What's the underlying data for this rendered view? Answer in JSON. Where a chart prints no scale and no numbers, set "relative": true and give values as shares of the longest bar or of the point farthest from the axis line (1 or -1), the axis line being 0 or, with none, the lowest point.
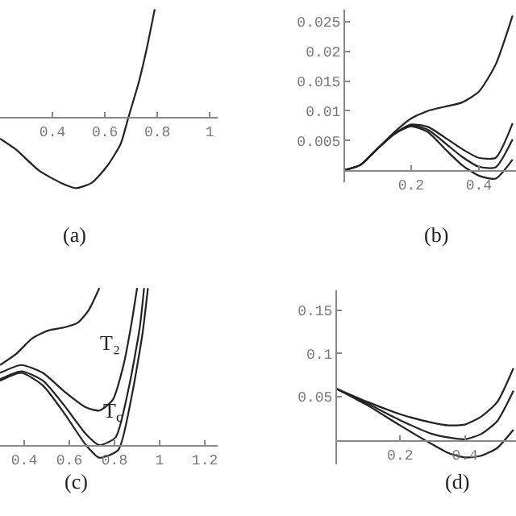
{
  "chart_data": [
    {
      "type": "line",
      "relative": true,
      "tick_labels": "x",
      "x": [
        0.2,
        0.26,
        0.35,
        0.44,
        0.49,
        0.55,
        0.61,
        0.66,
        0.69,
        0.73,
        0.76,
        0.79
      ],
      "xlim": [
        0.2,
        1.03
      ],
      "xticks": [
        0.4,
        0.6,
        0.8,
        1
      ],
      "series": [
        {
          "color": "#222222",
          "values": [
            -0.2,
            -0.3,
            -0.5,
            -0.62,
            -0.66,
            -0.61,
            -0.45,
            -0.25,
            0,
            0.33,
            0.64,
            1
          ]
        }
      ],
      "annotations": [
        "(a)"
      ]
    },
    {
      "type": "line",
      "x": [
        0,
        0.05,
        0.1,
        0.15,
        0.2,
        0.25,
        0.3,
        0.35,
        0.4,
        0.45,
        0.5
      ],
      "xlim": [
        0,
        0.51
      ],
      "xticks": [
        0.2,
        0.4
      ],
      "ylim": [
        -0.002,
        0.027
      ],
      "yticks": [
        0.005,
        0.01,
        0.015,
        0.02,
        0.025
      ],
      "series": [
        {
          "color": "#222222",
          "values": [
            0,
            0.0009,
            0.0036,
            0.0064,
            0.0087,
            0.01,
            0.0107,
            0.0114,
            0.0132,
            0.0178,
            0.026
          ]
        },
        {
          "color": "#222222",
          "values": [
            0,
            0.0009,
            0.0036,
            0.0061,
            0.0077,
            0.0073,
            0.0055,
            0.0036,
            0.0021,
            0.0021,
            0.0079
          ]
        },
        {
          "color": "#222222",
          "values": [
            0,
            0.0009,
            0.0036,
            0.0061,
            0.0076,
            0.0068,
            0.0046,
            0.0023,
            0.0006,
            0.0005,
            0.0052
          ]
        },
        {
          "color": "#222222",
          "values": [
            0,
            0.0009,
            0.0036,
            0.0061,
            0.0074,
            0.0064,
            0.0036,
            0.0009,
            -0.0009,
            -0.0014,
            0.0018
          ]
        }
      ],
      "annotations": [
        "(b)"
      ]
    },
    {
      "type": "line",
      "relative": true,
      "tick_labels": "x",
      "xlim": [
        0.293,
        1.257
      ],
      "xticks": [
        0.4,
        0.6,
        0.8,
        1,
        1.2
      ],
      "series": [
        {
          "color": "#222222",
          "x": [
            0.293,
            0.364,
            0.436,
            0.507,
            0.579,
            0.638,
            0.686,
            0.733
          ],
          "values": [
            0.51,
            0.58,
            0.68,
            0.73,
            0.75,
            0.78,
            0.86,
            1
          ]
        },
        {
          "color": "#222222",
          "x": [
            0.293,
            0.388,
            0.483,
            0.579,
            0.674,
            0.733,
            0.793,
            0.84,
            0.876,
            0.9
          ],
          "values": [
            0.46,
            0.51,
            0.46,
            0.34,
            0.24,
            0.22,
            0.29,
            0.51,
            0.78,
            1
          ]
        },
        {
          "color": "#222222",
          "x": [
            0.293,
            0.388,
            0.483,
            0.579,
            0.674,
            0.733,
            0.805,
            0.864,
            0.912,
            0.931
          ],
          "values": [
            0.42,
            0.47,
            0.41,
            0.25,
            0.07,
            0,
            0.05,
            0.37,
            0.75,
            1
          ]
        },
        {
          "color": "#222222",
          "x": [
            0.293,
            0.388,
            0.483,
            0.579,
            0.674,
            0.733,
            0.817,
            0.876,
            0.924,
            0.948
          ],
          "values": [
            0.41,
            0.46,
            0.38,
            0.2,
            0,
            -0.08,
            -0.03,
            0.31,
            0.71,
            1
          ]
        }
      ],
      "annotations": [
        "T₂",
        "T$_{c}$",
        "(c)"
      ]
    },
    {
      "type": "line",
      "x": [
        0,
        0.1,
        0.2,
        0.3,
        0.35,
        0.4,
        0.45,
        0.5,
        0.55
      ],
      "xlim": [
        0,
        0.558
      ],
      "xticks": [
        0.2,
        0.4
      ],
      "ylim": [
        -0.028,
        0.173
      ],
      "yticks": [
        0.05,
        0.1,
        0.15
      ],
      "series": [
        {
          "color": "#222222",
          "values": [
            0.06,
            0.044,
            0.03,
            0.02,
            0.017,
            0.018,
            0.027,
            0.044,
            0.083
          ]
        },
        {
          "color": "#222222",
          "values": [
            0.06,
            0.042,
            0.023,
            0.007,
            0.003,
            0.001,
            0.007,
            0.022,
            0.057
          ]
        },
        {
          "color": "#222222",
          "values": [
            0.06,
            0.04,
            0.017,
            -0.005,
            -0.015,
            -0.02,
            -0.018,
            -0.009,
            0.012
          ]
        }
      ],
      "annotations": [
        "(d)"
      ]
    }
  ]
}
